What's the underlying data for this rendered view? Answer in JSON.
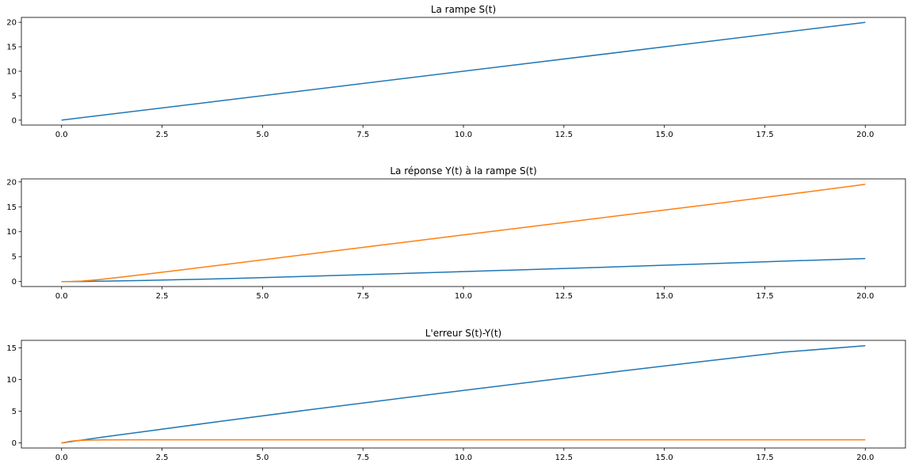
{
  "chart_data": [
    {
      "type": "line",
      "title": "La rampe S(t)",
      "xlabel": "",
      "ylabel": "",
      "xlim": [
        -1.0,
        21.0
      ],
      "ylim": [
        -1.0,
        21.0
      ],
      "xticks": [
        0.0,
        2.5,
        5.0,
        7.5,
        10.0,
        12.5,
        15.0,
        17.5,
        20.0
      ],
      "xtick_labels": [
        "0.0",
        "2.5",
        "5.0",
        "7.5",
        "10.0",
        "12.5",
        "15.0",
        "17.5",
        "20.0"
      ],
      "yticks": [
        0,
        5,
        10,
        15,
        20
      ],
      "ytick_labels": [
        "0",
        "5",
        "10",
        "15",
        "20"
      ],
      "grid": false,
      "series": [
        {
          "color": "#1f77b4",
          "x": [
            0,
            20
          ],
          "y": [
            0,
            20
          ]
        }
      ]
    },
    {
      "type": "line",
      "title": "La réponse Y(t) à la rampe S(t)",
      "xlabel": "",
      "ylabel": "",
      "xlim": [
        -1.0,
        21.0
      ],
      "ylim": [
        -1.0,
        20.6
      ],
      "xticks": [
        0.0,
        2.5,
        5.0,
        7.5,
        10.0,
        12.5,
        15.0,
        17.5,
        20.0
      ],
      "xtick_labels": [
        "0.0",
        "2.5",
        "5.0",
        "7.5",
        "10.0",
        "12.5",
        "15.0",
        "17.5",
        "20.0"
      ],
      "yticks": [
        0,
        5,
        10,
        15,
        20
      ],
      "ytick_labels": [
        "0",
        "5",
        "10",
        "15",
        "20"
      ],
      "grid": false,
      "series": [
        {
          "color": "#1f77b4",
          "x": [
            0,
            0.5,
            1,
            2,
            3,
            4,
            5,
            6,
            8,
            10,
            12,
            14,
            16,
            18,
            20
          ],
          "y": [
            0,
            0.02,
            0.06,
            0.2,
            0.38,
            0.58,
            0.8,
            1.02,
            1.5,
            2.0,
            2.5,
            3.0,
            3.55,
            4.1,
            4.62
          ]
        },
        {
          "color": "#ff7f0e",
          "x": [
            0,
            0.25,
            0.5,
            1,
            1.5,
            2,
            3,
            4,
            6,
            8,
            10,
            12,
            14,
            16,
            18,
            20
          ],
          "y": [
            0,
            0.02,
            0.1,
            0.45,
            0.9,
            1.38,
            2.35,
            3.35,
            5.35,
            7.35,
            9.35,
            11.35,
            13.35,
            15.35,
            17.4,
            19.5
          ]
        }
      ]
    },
    {
      "type": "line",
      "title": "L'erreur S(t)-Y(t)",
      "xlabel": "",
      "ylabel": "",
      "xlim": [
        -1.0,
        21.0
      ],
      "ylim": [
        -0.8,
        16.2
      ],
      "xticks": [
        0.0,
        2.5,
        5.0,
        7.5,
        10.0,
        12.5,
        15.0,
        17.5,
        20.0
      ],
      "xtick_labels": [
        "0.0",
        "2.5",
        "5.0",
        "7.5",
        "10.0",
        "12.5",
        "15.0",
        "17.5",
        "20.0"
      ],
      "yticks": [
        0,
        5,
        10,
        15
      ],
      "ytick_labels": [
        "0",
        "5",
        "10",
        "15"
      ],
      "grid": false,
      "series": [
        {
          "color": "#1f77b4",
          "x": [
            0,
            1,
            2,
            4,
            6,
            8,
            10,
            12,
            14,
            16,
            18,
            20
          ],
          "y": [
            0,
            0.9,
            1.75,
            3.45,
            5.1,
            6.7,
            8.3,
            9.85,
            11.4,
            12.9,
            14.35,
            15.35
          ]
        },
        {
          "color": "#ff7f0e",
          "x": [
            0,
            0.25,
            0.5,
            1,
            2,
            5,
            10,
            15,
            20
          ],
          "y": [
            0,
            0.3,
            0.42,
            0.48,
            0.5,
            0.5,
            0.5,
            0.5,
            0.5
          ]
        }
      ]
    }
  ]
}
